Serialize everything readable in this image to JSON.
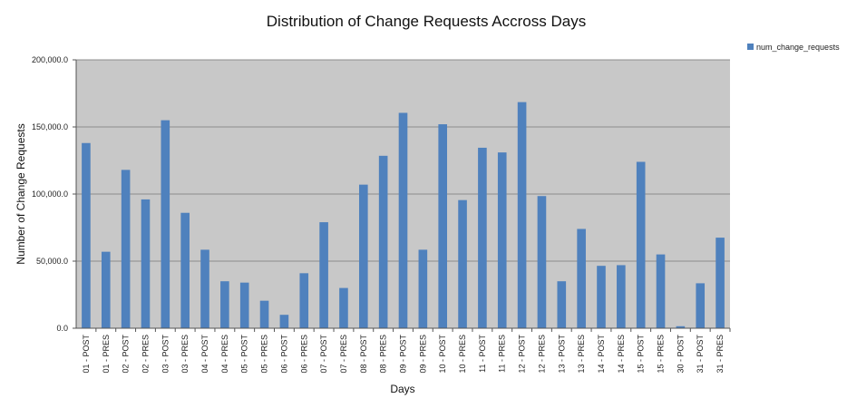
{
  "chart_data": {
    "type": "bar",
    "title": "Distribution of Change Requests Accross Days",
    "xlabel": "Days",
    "ylabel": "Number of Change Requests",
    "ylim": [
      0,
      200000
    ],
    "yticks": [
      "0.0",
      "50,000.0",
      "100,000.0",
      "150,000.0",
      "200,000.0"
    ],
    "grid": true,
    "legend_position": "top-right",
    "colors": {
      "bar": "#4f81bd",
      "plot_background": "#c8c8c8",
      "gridline": "#8c8c8c"
    },
    "categories": [
      "01 - POST",
      "01 - PRES",
      "02 - POST",
      "02 - PRES",
      "03 - POST",
      "03 - PRES",
      "04 - POST",
      "04 - PRES",
      "05 - POST",
      "05 - PRES",
      "06 - POST",
      "06 - PRES",
      "07 - POST",
      "07 - PRES",
      "08 - POST",
      "08 - PRES",
      "09 - POST",
      "09 - PRES",
      "10 - POST",
      "10 - PRES",
      "11 - POST",
      "11 - PRES",
      "12 - POST",
      "12 - PRES",
      "13 - POST",
      "13 - PRES",
      "14 - POST",
      "14 - PRES",
      "15 - POST",
      "15 - PRES",
      "30 - POST",
      "31 - POST",
      "31 - PRES"
    ],
    "series": [
      {
        "name": "num_change_requests",
        "values": [
          138000,
          57000,
          118000,
          96000,
          155000,
          86000,
          58500,
          35000,
          34000,
          20500,
          10000,
          41000,
          79000,
          30000,
          107000,
          128500,
          160500,
          58500,
          152000,
          95500,
          134500,
          131000,
          168500,
          98500,
          35000,
          74000,
          46500,
          47000,
          124000,
          55000,
          1500,
          33500,
          67500
        ]
      }
    ]
  }
}
